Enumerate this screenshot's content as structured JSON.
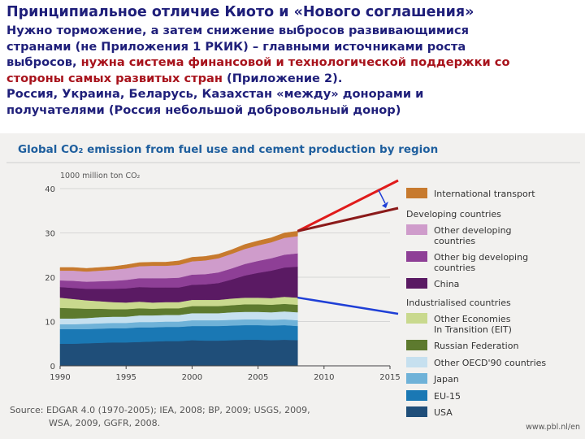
{
  "slide": {
    "title": "Принципиальное отличие Киото и «Нового соглашения»",
    "body": {
      "l1": "Нужно торможение, а затем снижение выбросов развивающимися",
      "l2": "странами (не Приложения 1 РКИК) – главными источниками роста",
      "l3a": "выбросов, ",
      "l3b": "нужна система финансовой и технологической поддержки со",
      "l4a": "стороны самых развитых стран",
      "l4b": " (Приложение 2).",
      "l5": "Россия, Украина, Беларусь, Казахстан «между» донорами и",
      "l6": "получателями (Россия небольшой добровольный донор)"
    },
    "red_color": "#a8131c",
    "text_color": "#1f1f7a"
  },
  "chart_data": {
    "type": "area",
    "title": "Global CO₂ emission from fuel use and cement production by region",
    "ylabel": "1000 million ton CO₂",
    "xlim": [
      1990,
      2015
    ],
    "ylim": [
      0,
      40
    ],
    "xticks": [
      1990,
      1995,
      2000,
      2005,
      2010,
      2015
    ],
    "yticks": [
      0,
      10,
      20,
      30,
      40
    ],
    "ytick_labels": [
      "0",
      "10",
      "20",
      "30",
      "40"
    ],
    "legend_position": "right",
    "x": [
      1990,
      1991,
      1992,
      1993,
      1994,
      1995,
      1996,
      1997,
      1998,
      1999,
      2000,
      2001,
      2002,
      2003,
      2004,
      2005,
      2006,
      2007,
      2008
    ],
    "series": [
      {
        "name": "USA",
        "group": "Industrialised countries",
        "color": "#1f4e79",
        "values": [
          5.0,
          5.0,
          5.1,
          5.2,
          5.3,
          5.3,
          5.4,
          5.5,
          5.6,
          5.6,
          5.8,
          5.7,
          5.7,
          5.8,
          5.9,
          5.9,
          5.8,
          5.9,
          5.8
        ]
      },
      {
        "name": "EU-15",
        "group": "Industrialised countries",
        "color": "#1a78b4",
        "values": [
          3.3,
          3.3,
          3.2,
          3.2,
          3.2,
          3.2,
          3.3,
          3.2,
          3.2,
          3.2,
          3.2,
          3.3,
          3.3,
          3.3,
          3.3,
          3.3,
          3.3,
          3.3,
          3.2
        ]
      },
      {
        "name": "Japan",
        "group": "Industrialised countries",
        "color": "#6fb2d8",
        "values": [
          1.1,
          1.1,
          1.2,
          1.2,
          1.2,
          1.2,
          1.2,
          1.2,
          1.2,
          1.2,
          1.3,
          1.3,
          1.3,
          1.3,
          1.3,
          1.3,
          1.3,
          1.3,
          1.3
        ]
      },
      {
        "name": "Other OECD'90 countries",
        "group": "Industrialised countries",
        "color": "#c6e0ef",
        "values": [
          1.3,
          1.3,
          1.3,
          1.4,
          1.4,
          1.4,
          1.5,
          1.5,
          1.5,
          1.5,
          1.6,
          1.6,
          1.6,
          1.7,
          1.7,
          1.7,
          1.7,
          1.8,
          1.8
        ]
      },
      {
        "name": "Russian Federation",
        "group": "Industrialised countries",
        "color": "#5d7a2e",
        "values": [
          2.4,
          2.3,
          2.1,
          1.9,
          1.7,
          1.7,
          1.6,
          1.5,
          1.5,
          1.5,
          1.6,
          1.6,
          1.6,
          1.6,
          1.7,
          1.7,
          1.7,
          1.7,
          1.7
        ]
      },
      {
        "name": "Other Economies In Transition (EIT)",
        "group": "Industrialised countries",
        "color": "#c9d98e",
        "values": [
          2.3,
          2.1,
          1.9,
          1.7,
          1.6,
          1.5,
          1.5,
          1.4,
          1.4,
          1.4,
          1.4,
          1.4,
          1.4,
          1.5,
          1.5,
          1.5,
          1.5,
          1.6,
          1.6
        ]
      },
      {
        "name": "China",
        "group": "Developing countries",
        "color": "#5a1a63",
        "values": [
          2.4,
          2.5,
          2.6,
          2.8,
          3.0,
          3.2,
          3.3,
          3.4,
          3.3,
          3.3,
          3.4,
          3.5,
          3.8,
          4.3,
          5.0,
          5.6,
          6.2,
          6.6,
          7.0
        ]
      },
      {
        "name": "Other big developing countries",
        "group": "Developing countries",
        "color": "#8e3f96",
        "values": [
          1.5,
          1.6,
          1.6,
          1.7,
          1.8,
          1.9,
          2.0,
          2.1,
          2.1,
          2.2,
          2.3,
          2.3,
          2.4,
          2.5,
          2.6,
          2.7,
          2.8,
          2.9,
          3.0
        ]
      },
      {
        "name": "Other developing countries",
        "group": "Developing countries",
        "color": "#cf9ccb",
        "values": [
          2.2,
          2.3,
          2.3,
          2.4,
          2.5,
          2.6,
          2.7,
          2.8,
          2.8,
          2.9,
          3.0,
          3.1,
          3.2,
          3.3,
          3.4,
          3.5,
          3.6,
          3.8,
          3.9
        ]
      },
      {
        "name": "International transport",
        "group": "",
        "color": "#c77a2e",
        "values": [
          0.7,
          0.7,
          0.7,
          0.7,
          0.7,
          0.8,
          0.8,
          0.8,
          0.8,
          0.9,
          0.9,
          0.9,
          0.9,
          0.9,
          1.0,
          1.0,
          1.0,
          1.1,
          1.1
        ]
      }
    ],
    "legend": {
      "top_item": "International transport",
      "developing_header": "Developing countries",
      "developing_items": [
        "Other developing countries",
        "Other big developing countries",
        "China"
      ],
      "industrialised_header": "Industrialised countries",
      "industrialised_items": [
        "Other Economies In Transition (EIT)",
        "Russian Federation",
        "Other OECD'90 countries",
        "Japan",
        "EU-15",
        "USA"
      ]
    },
    "source": "Source: EDGAR 4.0 (1970-2005); IEA, 2008; BP, 2009; USGS, 2009, WSA, 2009, GGFR, 2008.",
    "source_l1": "Source: EDGAR 4.0 (1970-2005); IEA, 2008; BP, 2009; USGS, 2009,",
    "source_l2": "WSA, 2009, GGFR, 2008.",
    "credit": "www.pbl.nl/en",
    "annotation_colors": {
      "top_line": "#e01b1b",
      "top_line_2": "#8b1a1a",
      "bottom_line": "#1f3fd6",
      "arrow": "#1f3fd6"
    }
  }
}
